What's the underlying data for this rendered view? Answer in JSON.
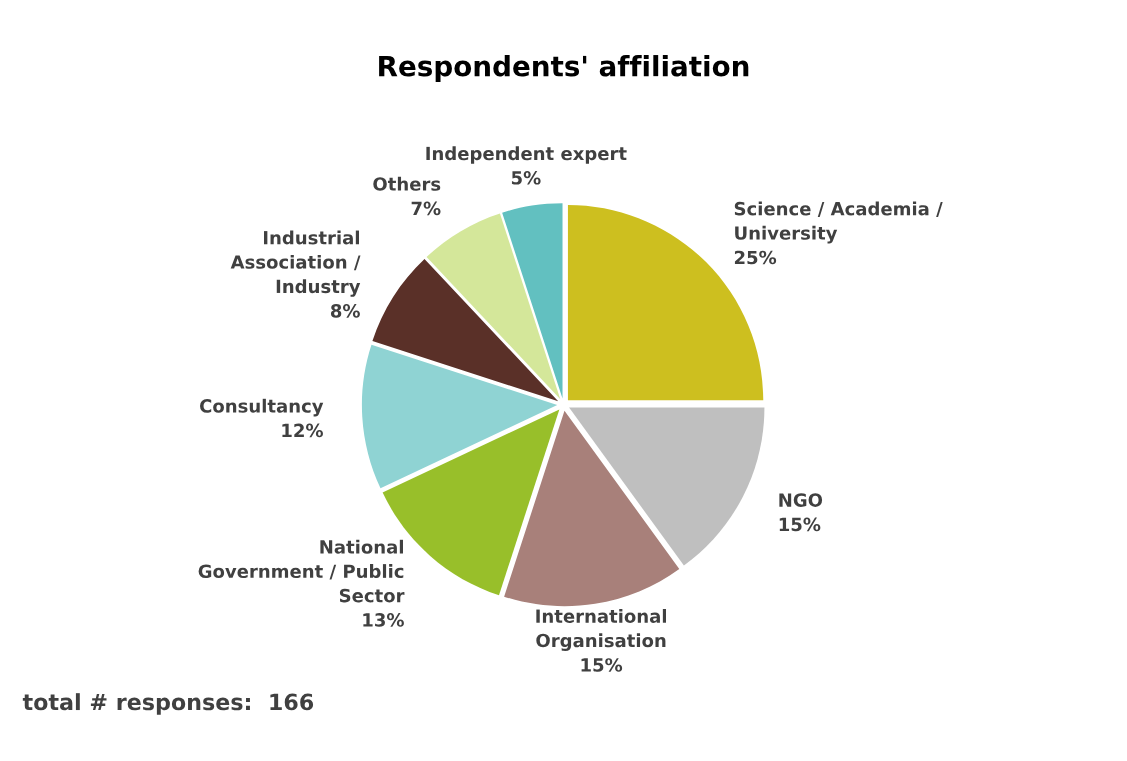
{
  "chart_data": {
    "type": "pie",
    "title": "Respondents' affiliation",
    "categories": [
      "Science / Academia /\nUniversity",
      "NGO",
      "International\nOrganisation",
      "National\nGovernment / Public\nSector",
      "Consultancy",
      "Industrial\nAssociation /\nIndustry",
      "Others",
      "Independent expert"
    ],
    "values": [
      25,
      15,
      15,
      13,
      12,
      8,
      7,
      5
    ],
    "value_labels": [
      "25%",
      "15%",
      "15%",
      "13%",
      "12%",
      "8%",
      "7%",
      "5%"
    ],
    "colors": [
      "#cdbf1f",
      "#bfbfbf",
      "#a8807a",
      "#98bf2a",
      "#8fd3d3",
      "#5a3028",
      "#d4e79a",
      "#62c0c0"
    ],
    "annotations": [
      "total # responses:  166"
    ]
  }
}
